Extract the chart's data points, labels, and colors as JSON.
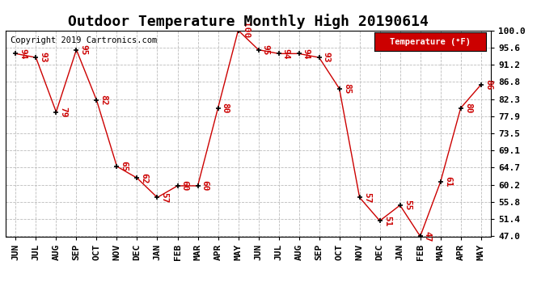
{
  "title": "Outdoor Temperature Monthly High 20190614",
  "copyright": "Copyright 2019 Cartronics.com",
  "legend_label": "Temperature (°F)",
  "categories": [
    "JUN",
    "JUL",
    "AUG",
    "SEP",
    "OCT",
    "NOV",
    "DEC",
    "JAN",
    "FEB",
    "MAR",
    "APR",
    "MAY",
    "JUN",
    "JUL",
    "AUG",
    "SEP",
    "OCT",
    "NOV",
    "DEC",
    "JAN",
    "FEB",
    "MAR",
    "APR",
    "MAY"
  ],
  "values": [
    94,
    93,
    79,
    95,
    82,
    65,
    62,
    57,
    60,
    60,
    80,
    100,
    95,
    94,
    94,
    93,
    85,
    57,
    51,
    55,
    47,
    61,
    80,
    86
  ],
  "ylim": [
    47.0,
    100.0
  ],
  "ytick_labels": [
    "47.0",
    "51.4",
    "55.8",
    "60.2",
    "64.7",
    "69.1",
    "73.5",
    "77.9",
    "82.3",
    "86.8",
    "91.2",
    "95.6",
    "100.0"
  ],
  "ytick_values": [
    47.0,
    51.4,
    55.8,
    60.2,
    64.7,
    69.1,
    73.5,
    77.9,
    82.3,
    86.8,
    91.2,
    95.6,
    100.0
  ],
  "line_color": "#cc0000",
  "marker_color": "#000000",
  "legend_bg": "#cc0000",
  "legend_text_color": "#ffffff",
  "title_fontsize": 13,
  "copyright_fontsize": 7.5,
  "label_fontsize": 8,
  "tick_fontsize": 8,
  "ytick_fontsize": 8,
  "background_color": "#ffffff",
  "grid_color": "#bbbbbb",
  "border_color": "#000000"
}
